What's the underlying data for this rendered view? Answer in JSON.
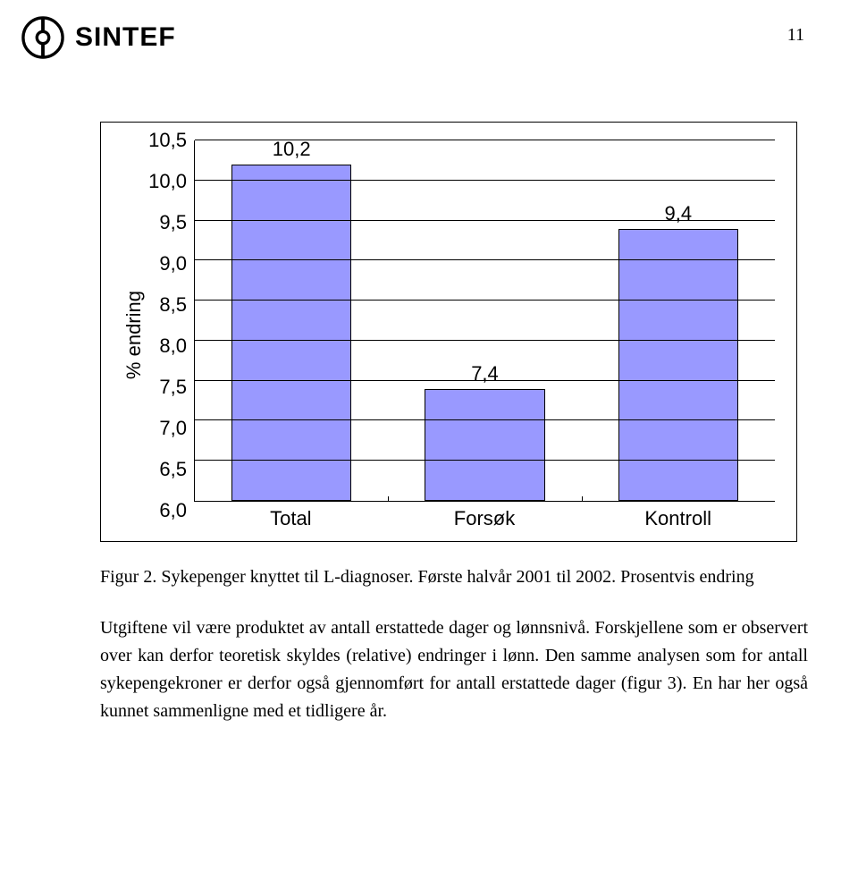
{
  "page": {
    "number": "11"
  },
  "brand": {
    "name": "SINTEF"
  },
  "chart": {
    "type": "bar",
    "yaxis_label": "% endring",
    "ylim": [
      6.0,
      10.5
    ],
    "ytick_step": 0.5,
    "yticks": [
      "10,5",
      "10,0",
      "9,5",
      "9,0",
      "8,5",
      "8,0",
      "7,5",
      "7,0",
      "6,5",
      "6,0"
    ],
    "categories": [
      "Total",
      "Forsøk",
      "Kontroll"
    ],
    "values": [
      10.2,
      7.4,
      9.4
    ],
    "value_labels": [
      "10,2",
      "7,4",
      "9,4"
    ],
    "bar_fill": "#9999ff",
    "bar_border": "#000000",
    "grid_color": "#000000",
    "background_color": "#ffffff",
    "font_size_pt": 16,
    "bar_width": 0.62
  },
  "caption": "Figur 2. Sykepenger knyttet til L-diagnoser. Første halvår 2001 til 2002. Prosentvis endring",
  "body": "Utgiftene vil være produktet av antall erstattede dager og lønnsnivå. Forskjellene som er observert over kan derfor teoretisk skyldes (relative) endringer i lønn. Den samme analysen som for antall sykepengekroner er derfor også gjennomført for antall erstattede dager (figur 3). En har her også kunnet sammenligne med et tidligere år."
}
